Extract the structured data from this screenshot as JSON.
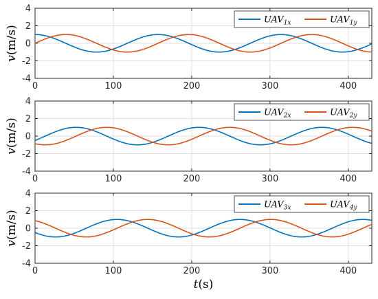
{
  "chart_data": [
    {
      "type": "line",
      "xlim": [
        0,
        430
      ],
      "ylim": [
        -4,
        4
      ],
      "xticks": [
        "0",
        "100",
        "200",
        "300",
        "400"
      ],
      "yticks": [
        "4",
        "2",
        "0",
        "-2",
        "-4"
      ],
      "ylabel": {
        "base": "v",
        "unit": "(m/s)"
      },
      "grid": true,
      "legend_position": "top-right",
      "series": [
        {
          "name": {
            "base": "UAV",
            "sub": "1x"
          },
          "color": "#0072BD",
          "amplitude": 1,
          "period": 157,
          "x_peak": 0,
          "x": [
            0,
            39.25,
            78.5,
            117.75,
            157,
            196.25,
            235.5,
            274.75,
            314,
            353.25,
            392.5,
            430
          ],
          "y": [
            1,
            0,
            -1,
            0,
            1,
            0,
            -1,
            0,
            1,
            0,
            -1,
            -0.05
          ]
        },
        {
          "name": {
            "base": "UAV",
            "sub": "1y"
          },
          "color": "#D95319",
          "amplitude": 1,
          "period": 157,
          "x_peak": 39.25,
          "x": [
            0,
            39.25,
            78.5,
            117.75,
            157,
            196.25,
            235.5,
            274.75,
            314,
            353.25,
            392.5,
            430
          ],
          "y": [
            0,
            1,
            0,
            -1,
            0,
            1,
            0,
            -1,
            0,
            1,
            0,
            -1
          ]
        }
      ]
    },
    {
      "type": "line",
      "xlim": [
        0,
        430
      ],
      "ylim": [
        -4,
        4
      ],
      "xticks": [
        "0",
        "100",
        "200",
        "300",
        "400"
      ],
      "yticks": [
        "4",
        "2",
        "0",
        "-2",
        "-4"
      ],
      "ylabel": {
        "base": "v",
        "unit": "(m/s)"
      },
      "grid": true,
      "legend_position": "top-right",
      "series": [
        {
          "name": {
            "base": "UAV",
            "sub": "2x"
          },
          "color": "#0072BD",
          "amplitude": 1,
          "period": 157,
          "x_peak": 52.3,
          "x": [
            0,
            52.3,
            91.5,
            130.8,
            170,
            209.3,
            248.5,
            287.8,
            327,
            366.3,
            405.5,
            430
          ],
          "y": [
            -0.5,
            1,
            0,
            -1,
            0,
            1,
            0,
            -1,
            0,
            1,
            0,
            -0.8
          ]
        },
        {
          "name": {
            "base": "UAV",
            "sub": "2y"
          },
          "color": "#D95319",
          "amplitude": 1,
          "period": 157,
          "x_peak": 91.6,
          "x": [
            0,
            13,
            52.3,
            91.6,
            130.8,
            170,
            209.3,
            248.6,
            287.8,
            327,
            366.3,
            405.6,
            430
          ],
          "y": [
            -0.85,
            -1,
            0,
            1,
            0,
            -1,
            0,
            1,
            0,
            -1,
            0,
            1,
            0.6
          ]
        }
      ]
    },
    {
      "type": "line",
      "xlim": [
        0,
        430
      ],
      "ylim": [
        -4,
        4
      ],
      "xticks": [
        "0",
        "100",
        "200",
        "300",
        "400"
      ],
      "yticks": [
        "4",
        "2",
        "0",
        "-2",
        "-4"
      ],
      "xlabel": {
        "base": "t",
        "unit": "(s)"
      },
      "ylabel": {
        "base": "v",
        "unit": "(m/s)"
      },
      "grid": true,
      "legend_position": "top-right",
      "series": [
        {
          "name": {
            "base": "UAV",
            "sub": "3x"
          },
          "color": "#0072BD",
          "amplitude": 1,
          "period": 157,
          "x_peak": 104.7,
          "x": [
            0,
            26.2,
            65.4,
            104.7,
            143.9,
            183.2,
            222.4,
            261.7,
            300.9,
            340.2,
            379.4,
            418.7,
            430
          ],
          "y": [
            -0.5,
            -1,
            0,
            1,
            0,
            -1,
            0,
            1,
            0,
            -1,
            0,
            1,
            0.95
          ]
        },
        {
          "name": {
            "base": "UAV",
            "sub": "4y"
          },
          "color": "#D95319",
          "amplitude": 1,
          "period": 157,
          "x_peak": 143.9,
          "x": [
            0,
            26.2,
            65.4,
            104.7,
            143.9,
            183.2,
            222.4,
            261.7,
            300.9,
            340.2,
            379.4,
            418.7,
            430
          ],
          "y": [
            0.85,
            0,
            -1,
            0,
            1,
            0,
            -1,
            0,
            1,
            0,
            -1,
            0,
            0.35
          ]
        }
      ]
    }
  ]
}
